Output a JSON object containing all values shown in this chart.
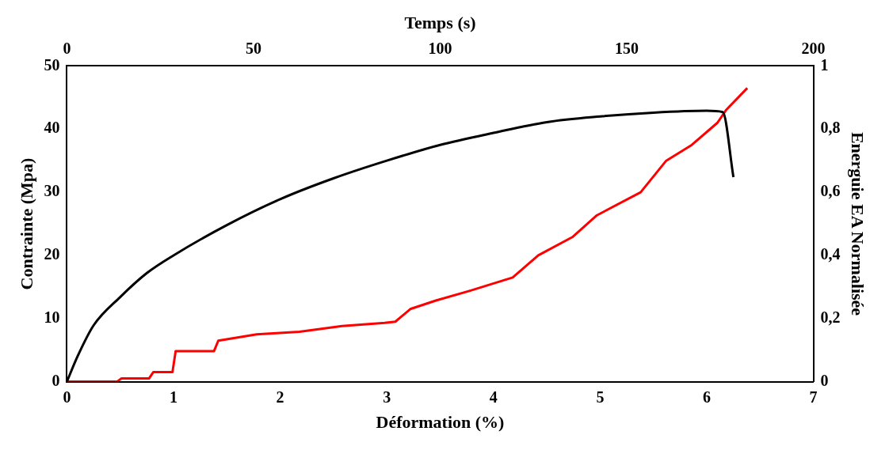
{
  "chart_data": {
    "type": "line",
    "xlabel": "Déformation (%)",
    "ylabel": "Contrainte (Mpa)",
    "y2label": "Energuie EA Normalisée",
    "x2label": "Temps (s)",
    "xlim": [
      0,
      7
    ],
    "xticks": [
      0,
      1,
      2,
      3,
      4,
      5,
      6,
      7
    ],
    "ylim": [
      0,
      50
    ],
    "yticks": [
      0,
      10,
      20,
      30,
      40,
      50
    ],
    "x2lim": [
      0,
      200
    ],
    "x2ticks": [
      0,
      50,
      100,
      150,
      200
    ],
    "y2lim": [
      0,
      1
    ],
    "y2ticks": [
      {
        "value": 0,
        "label": "0"
      },
      {
        "value": 0.2,
        "label": "0,2"
      },
      {
        "value": 0.4,
        "label": "0,4"
      },
      {
        "value": 0.6,
        "label": "0,6"
      },
      {
        "value": 0.8,
        "label": "0,8"
      },
      {
        "value": 1,
        "label": "1"
      }
    ],
    "grid": false,
    "legend": false,
    "marker": "none",
    "line_style": "solid",
    "series": [
      {
        "color": "#000000",
        "x": [
          0,
          0.1,
          0.25,
          0.5,
          0.75,
          1,
          1.5,
          2,
          2.5,
          3,
          3.5,
          4,
          4.5,
          5,
          5.5,
          6,
          6.15,
          6.25
        ],
        "values": [
          0,
          4,
          8.9,
          13.4,
          17.2,
          20,
          24.8,
          28.9,
          32.2,
          35,
          37.5,
          39.4,
          41.1,
          42,
          42.6,
          42.9,
          42.7,
          32.4
        ]
      },
      {
        "color": "#ff0000",
        "axis": "y2",
        "x": [
          0,
          0.47,
          0.51,
          0.77,
          0.81,
          0.99,
          1.02,
          1.38,
          1.42,
          1.78,
          2.18,
          2.58,
          2.98,
          3.08,
          3.22,
          3.46,
          3.78,
          4.18,
          4.42,
          4.74,
          4.97,
          5.38,
          5.62,
          5.86,
          6.1,
          6.18,
          6.38
        ],
        "values": [
          0,
          0,
          0.01,
          0.01,
          0.03,
          0.03,
          0.097,
          0.097,
          0.13,
          0.15,
          0.158,
          0.176,
          0.186,
          0.19,
          0.23,
          0.257,
          0.288,
          0.33,
          0.4,
          0.458,
          0.527,
          0.6,
          0.7,
          0.75,
          0.82,
          0.86,
          0.93
        ]
      }
    ]
  }
}
